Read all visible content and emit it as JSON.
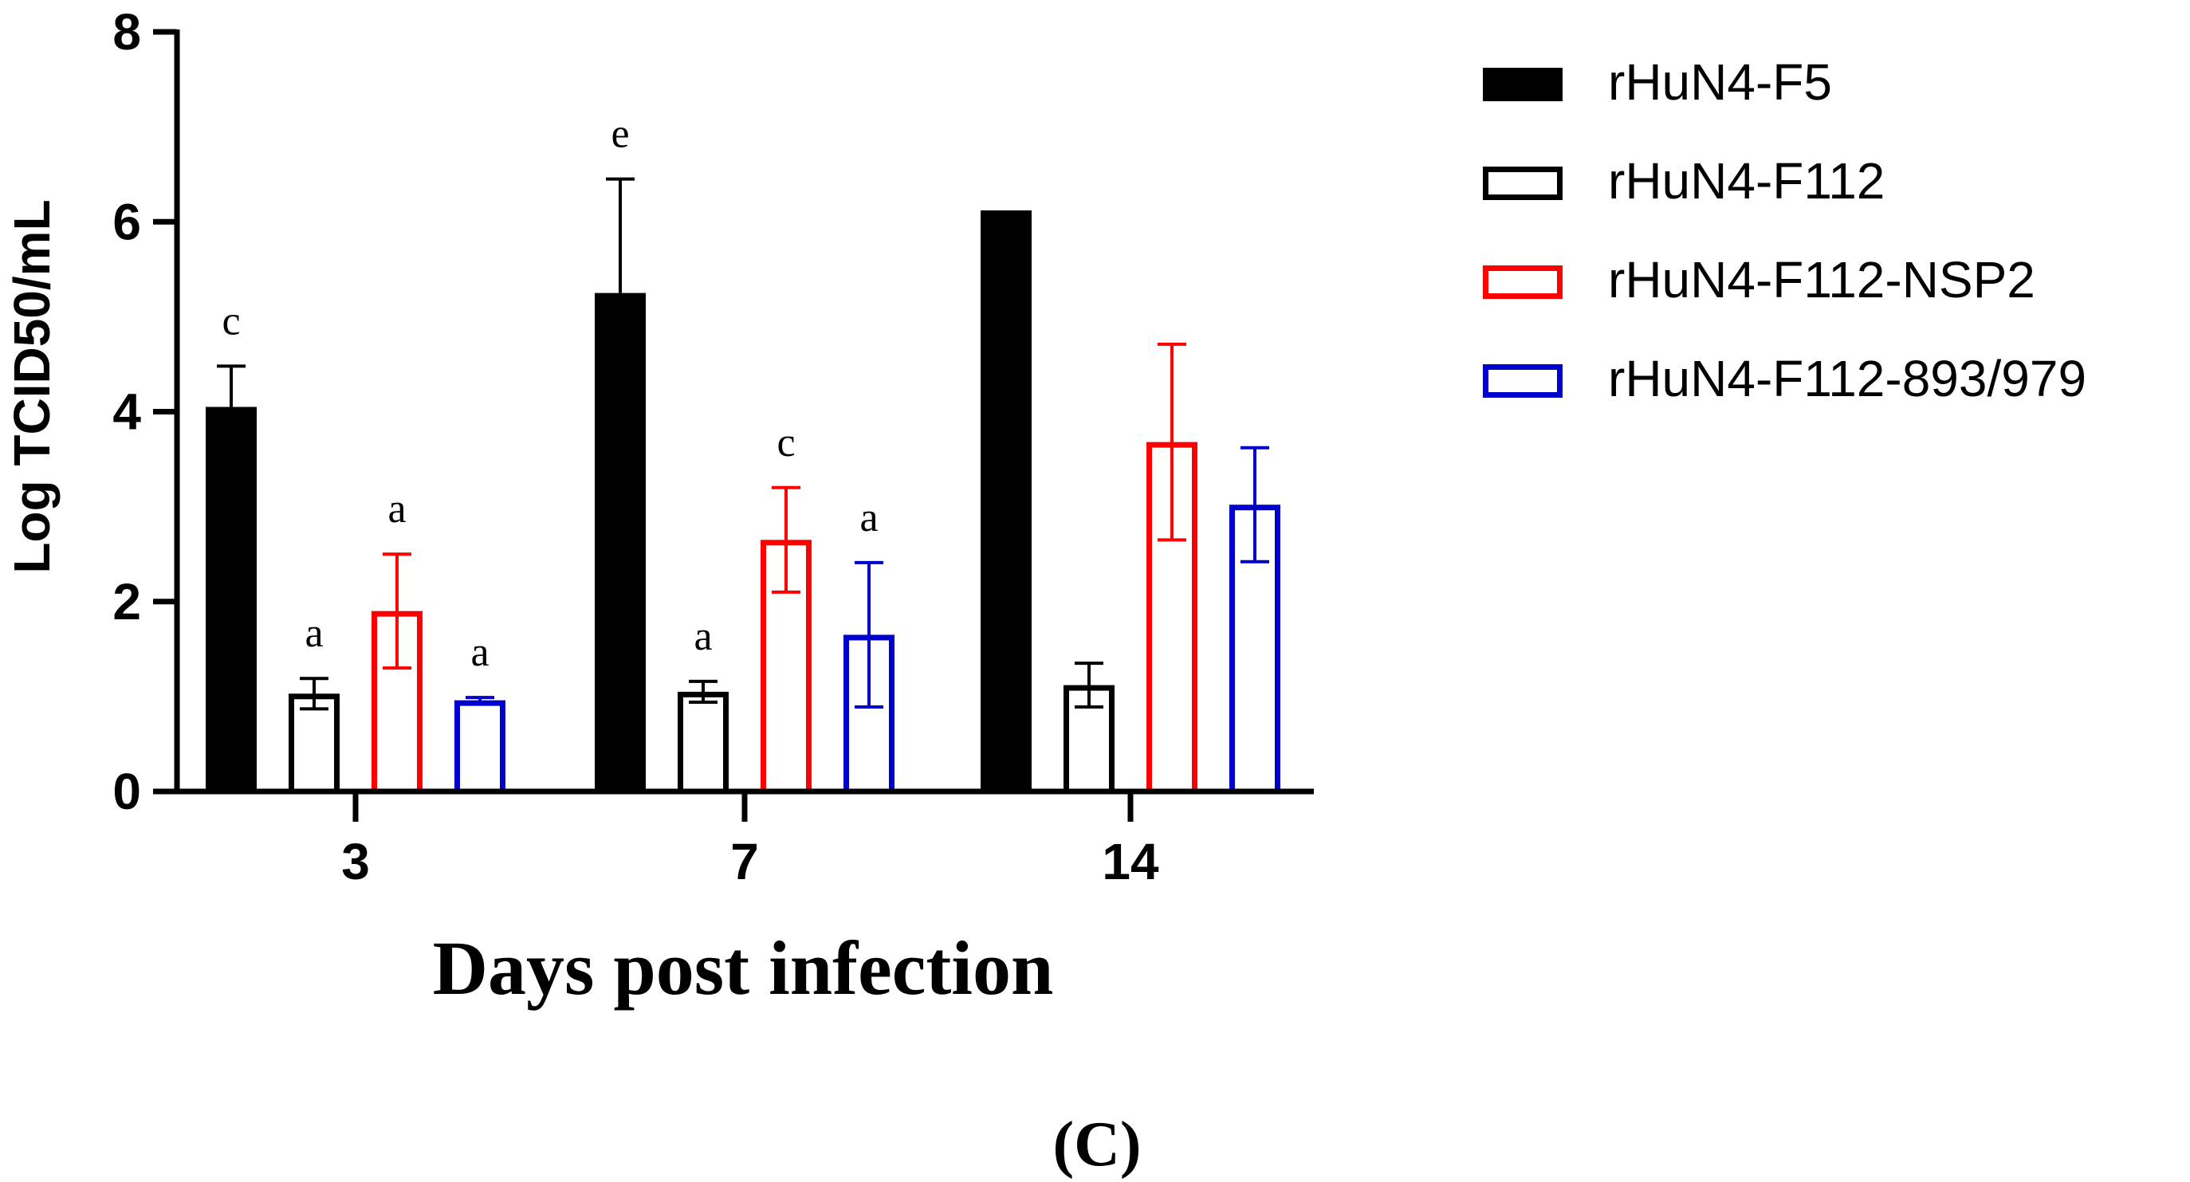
{
  "chart_data": {
    "type": "bar",
    "ylabel": "Log TCID50/mL",
    "xlabel": "Days post infection",
    "panel_label": "(C)",
    "ylim": [
      0,
      8
    ],
    "yticks": [
      "0",
      "2",
      "4",
      "6",
      "8"
    ],
    "categories": [
      "3",
      "7",
      "14"
    ],
    "series": [
      {
        "name": "rHuN4-F5",
        "color": "#000000",
        "fill": "solid",
        "values": [
          4.05,
          5.25,
          6.12
        ],
        "errors": [
          0.43,
          1.2,
          null
        ],
        "labels": [
          "c",
          "e",
          ""
        ]
      },
      {
        "name": "rHuN4-F112",
        "color": "#000000",
        "fill": "hollow",
        "values": [
          1.03,
          1.05,
          1.12
        ],
        "errors": [
          0.16,
          0.11,
          0.23
        ],
        "labels": [
          "a",
          "a",
          ""
        ]
      },
      {
        "name": "rHuN4-F112-NSP2",
        "color": "#ff0000",
        "fill": "hollow",
        "values": [
          1.9,
          2.65,
          3.68
        ],
        "errors": [
          0.6,
          0.55,
          1.03
        ],
        "labels": [
          "a",
          "c",
          ""
        ]
      },
      {
        "name": "rHuN4-F112-893/979",
        "color": "#0000cc",
        "fill": "hollow",
        "values": [
          0.96,
          1.65,
          3.02
        ],
        "errors": [
          0.03,
          0.76,
          0.6
        ],
        "labels": [
          "a",
          "a",
          ""
        ]
      }
    ]
  }
}
